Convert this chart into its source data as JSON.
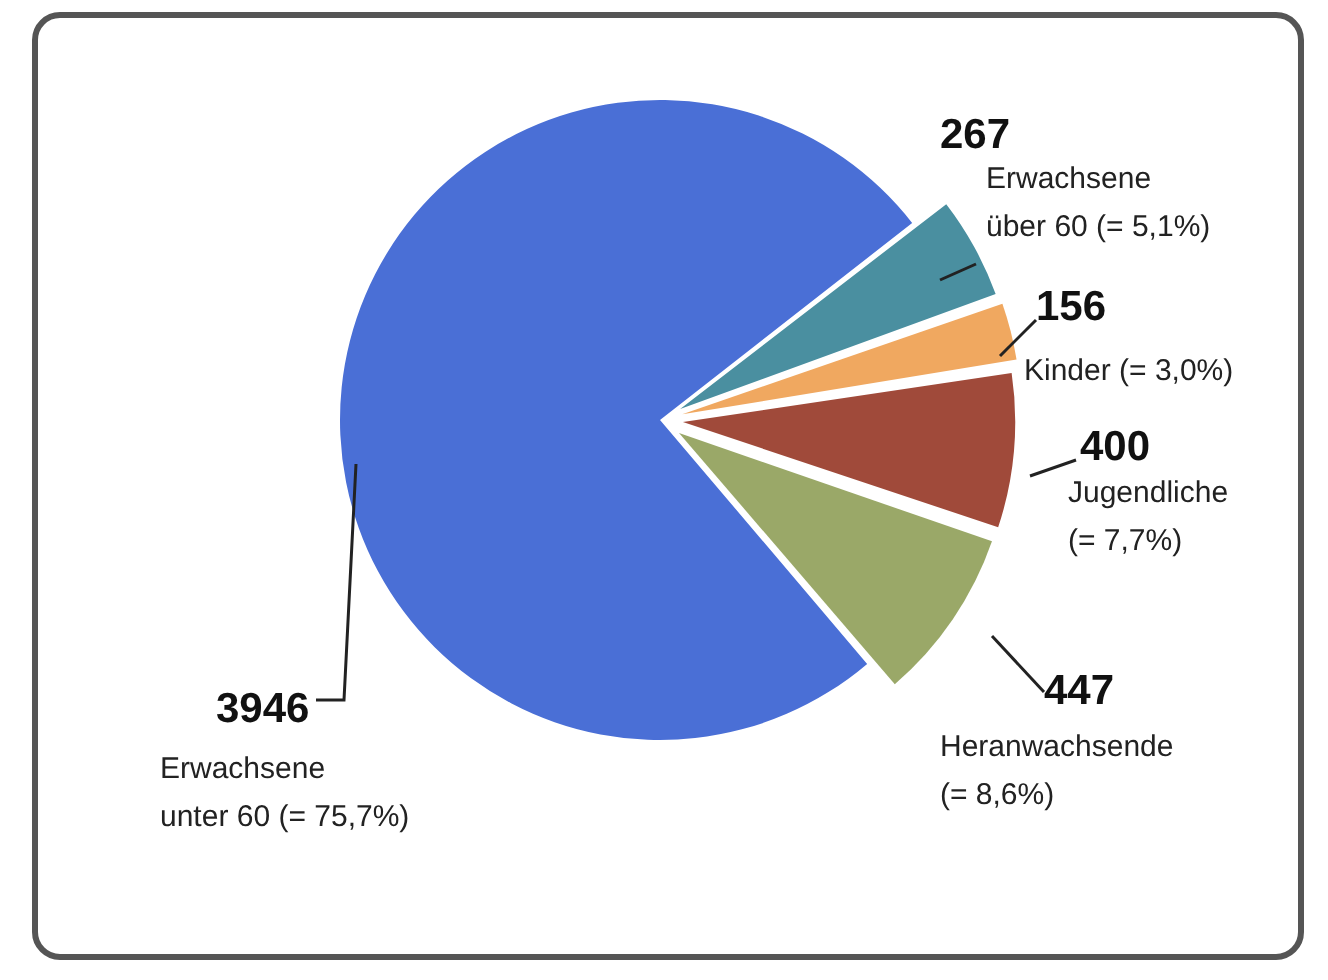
{
  "chart_data": {
    "type": "pie",
    "categories": [
      "Erwachsene über 60 (= 5,1%)",
      "Kinder (= 3,0%)",
      "Jugendliche (= 7,7%)",
      "Heranwachsende (= 8,6%)",
      "Erwachsene unter 60 (= 75,7%)"
    ],
    "values": [
      267,
      156,
      400,
      447,
      3946
    ],
    "colors": [
      "#4a8fa0",
      "#f0a860",
      "#a04a3a",
      "#9aa868",
      "#4a6fd6"
    ],
    "data_labels": true,
    "legend": false
  }
}
